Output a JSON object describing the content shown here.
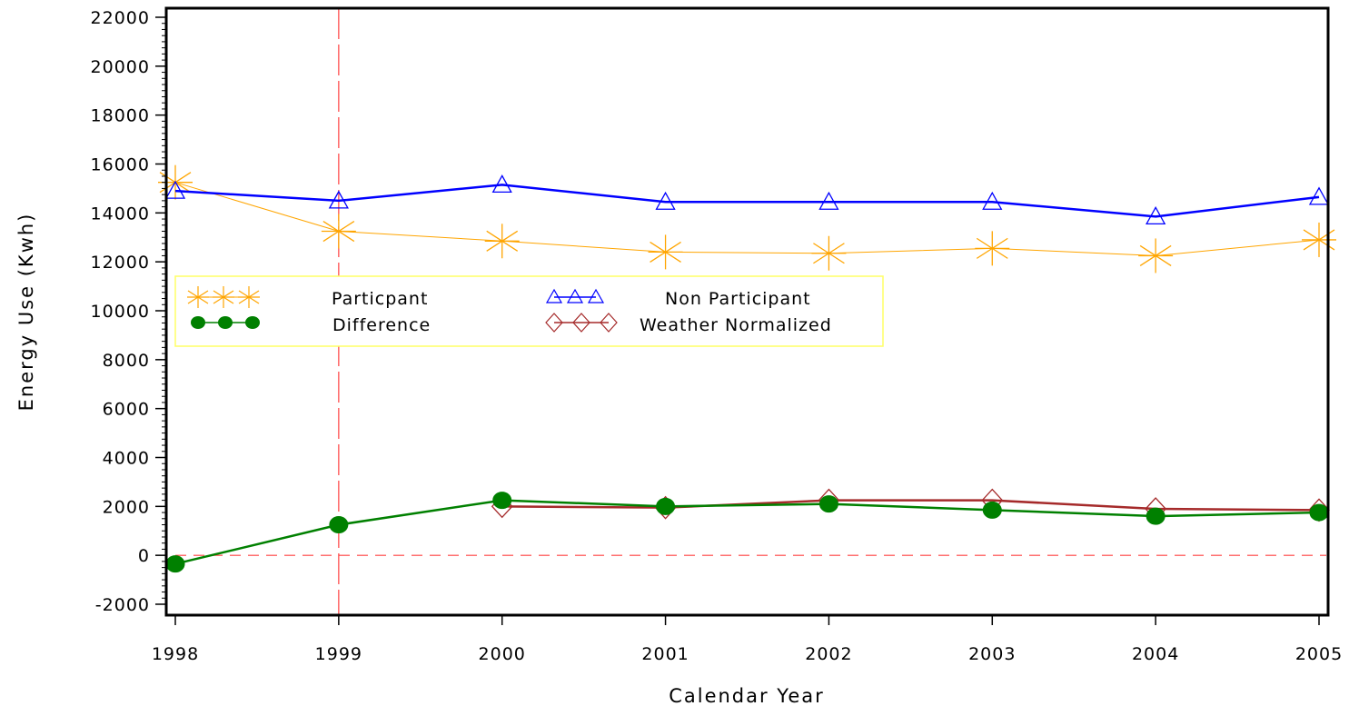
{
  "chart_data": {
    "type": "line",
    "title": "",
    "xlabel": "Calendar Year",
    "ylabel": "Energy Use (Kwh)",
    "x": [
      1998,
      1999,
      2000,
      2001,
      2002,
      2003,
      2004,
      2005
    ],
    "x_tick_labels": [
      "1998",
      "1999",
      "2000",
      "2001",
      "2002",
      "2003",
      "2004",
      "2005"
    ],
    "xlim": [
      1998,
      2005
    ],
    "ylim": [
      -2000,
      22000
    ],
    "y_tick_labels": [
      "-2000",
      "0",
      "2000",
      "4000",
      "6000",
      "8000",
      "10000",
      "12000",
      "14000",
      "16000",
      "18000",
      "20000",
      "22000"
    ],
    "y_ticks": [
      -2000,
      0,
      2000,
      4000,
      6000,
      8000,
      10000,
      12000,
      14000,
      16000,
      18000,
      20000,
      22000
    ],
    "grid": false,
    "legend_position": "upper-left",
    "reference_lines": [
      {
        "orientation": "vertical",
        "value": 1999,
        "color": "#ff4040",
        "style": "long-dash"
      },
      {
        "orientation": "horizontal",
        "value": 0,
        "color": "#ff4040",
        "style": "dash"
      }
    ],
    "series": [
      {
        "name": "Particpant",
        "color": "#ffa500",
        "marker": "star",
        "line_width": 1,
        "values": [
          15250,
          13250,
          12850,
          12400,
          12350,
          12550,
          12250,
          12900
        ]
      },
      {
        "name": "Non Participant",
        "color": "#0000ff",
        "marker": "triangle",
        "line_width": 2.5,
        "values": [
          14900,
          14500,
          15150,
          14450,
          14450,
          14450,
          13850,
          14650
        ]
      },
      {
        "name": "Difference",
        "color": "#008000",
        "marker": "dot",
        "line_width": 2.5,
        "values": [
          -350,
          1250,
          2250,
          2000,
          2100,
          1850,
          1600,
          1750
        ]
      },
      {
        "name": "Weather Normalized",
        "color": "#a52a2a",
        "marker": "diamond",
        "line_width": 2.5,
        "values": [
          null,
          null,
          2000,
          1950,
          2250,
          2250,
          1900,
          1850
        ]
      }
    ]
  }
}
